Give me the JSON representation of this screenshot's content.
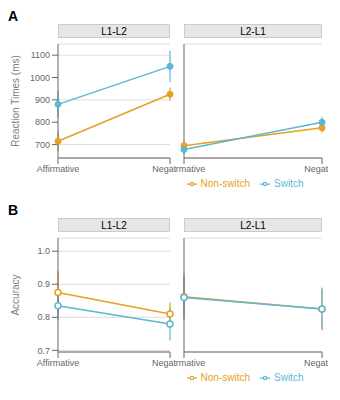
{
  "chart_data": [
    {
      "type": "line",
      "title": "L1-L2",
      "annotations": [
        "A"
      ],
      "ylabel": "Reaction Times (ms)",
      "categories": [
        "Affirmative",
        "Negative"
      ],
      "series": [
        {
          "name": "Non-switch",
          "color": "#E8A020",
          "values": [
            715,
            925
          ],
          "yerr_lo": [
            45,
            30
          ],
          "yerr_hi": [
            45,
            30
          ]
        },
        {
          "name": "Switch",
          "color": "#5BB8D4",
          "values": [
            880,
            1050
          ],
          "yerr_lo": [
            60,
            70
          ],
          "yerr_hi": [
            60,
            70
          ]
        }
      ],
      "ylim": [
        640,
        1150
      ],
      "yticks": [
        700,
        800,
        900,
        1000,
        1100
      ],
      "grid": true,
      "marker": "circle"
    },
    {
      "type": "line",
      "title": "L2-L1",
      "categories": [
        "Affirmative",
        "Negative"
      ],
      "series": [
        {
          "name": "Non-switch",
          "color": "#E8A020",
          "values": [
            695,
            775
          ],
          "yerr_lo": [
            20,
            22
          ],
          "yerr_hi": [
            20,
            22
          ]
        },
        {
          "name": "Switch",
          "color": "#5BB8D4",
          "values": [
            678,
            800
          ],
          "yerr_lo": [
            20,
            25
          ],
          "yerr_hi": [
            20,
            25
          ]
        }
      ],
      "ylim": [
        640,
        1150
      ],
      "yticks": [
        700,
        800,
        900,
        1000,
        1100
      ],
      "grid": true,
      "marker": "circle",
      "tick_labels": "x",
      "legend": "bottom"
    },
    {
      "type": "line",
      "title": "L1-L2",
      "annotations": [
        "B"
      ],
      "ylabel": "Accuracy",
      "categories": [
        "Affirmative",
        "Negating"
      ],
      "series": [
        {
          "name": "Non-switch",
          "color": "#E8A020",
          "values": [
            0.875,
            0.81
          ],
          "yerr_lo": [
            0.065,
            0.035
          ],
          "yerr_hi": [
            0.065,
            0.035
          ]
        },
        {
          "name": "Switch",
          "color": "#5BB8D4",
          "values": [
            0.835,
            0.78
          ],
          "yerr_lo": [
            0.045,
            0.05
          ],
          "yerr_hi": [
            0.045,
            0.05
          ]
        }
      ],
      "ylim": [
        0.695,
        1.04
      ],
      "yticks": [
        0.7,
        0.8,
        0.9,
        {
          "value": 1.0,
          "label": "1.0"
        }
      ],
      "grid": true,
      "marker": "open_circle"
    },
    {
      "type": "line",
      "title": "L2-L1",
      "categories": [
        "Affirmative",
        "Negating"
      ],
      "series": [
        {
          "name": "Non-switch",
          "color": "#E8A020",
          "values": [
            0.862,
            0.825
          ],
          "yerr_lo": [
            0.07,
            0.065
          ],
          "yerr_hi": [
            0.07,
            0.065
          ]
        },
        {
          "name": "Switch",
          "color": "#5BB8D4",
          "values": [
            0.86,
            0.825
          ],
          "yerr_lo": [
            0.06,
            0.06
          ],
          "yerr_hi": [
            0.06,
            0.06
          ]
        }
      ],
      "ylim": [
        0.695,
        1.04
      ],
      "yticks": [
        0.7,
        0.8,
        0.9,
        {
          "value": 1.0,
          "label": "1.0"
        }
      ],
      "grid": true,
      "marker": "open_circle",
      "tick_labels": "x",
      "legend": "bottom"
    }
  ]
}
